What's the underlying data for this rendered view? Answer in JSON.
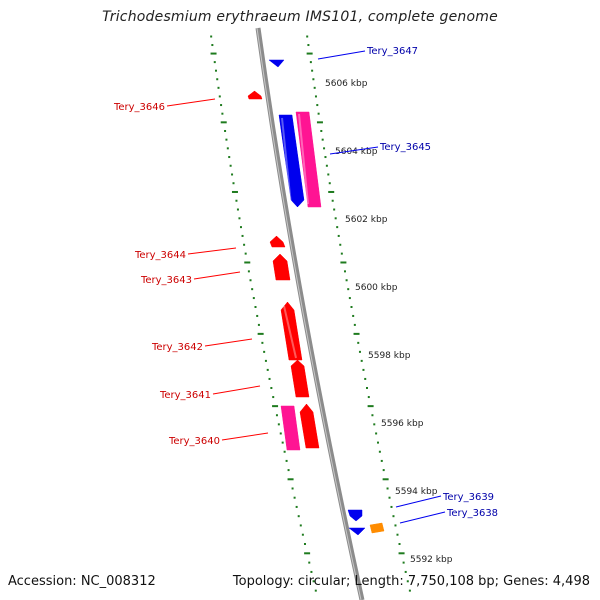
{
  "title": "Trichodesmium erythraeum IMS101, complete genome",
  "footer": {
    "accession": "Accession: NC_008312",
    "summary": "Topology: circular; Length: 7,750,108 bp; Genes: 4,498"
  },
  "colors": {
    "backbone": "#8c8c8c",
    "ruler": "#1e7b1e",
    "forward_cds": "#ff0000",
    "reverse_cds": "#0000ee",
    "forward_other": "#ff1493",
    "reverse_other": "#ff1493",
    "misc": "#ff8c00",
    "forward_label": "#cc0000",
    "reverse_label": "#0000aa"
  },
  "ruler": {
    "ticks": [
      "5606 kbp",
      "5604 kbp",
      "5602 kbp",
      "5600 kbp",
      "5598 kbp",
      "5596 kbp",
      "5594 kbp",
      "5592 kbp"
    ]
  },
  "genes": [
    {
      "label": "Tery_3647",
      "strand": "reverse",
      "type": "CDS"
    },
    {
      "label": "Tery_3646",
      "strand": "forward",
      "type": "CDS"
    },
    {
      "label": "Tery_3645",
      "strand": "reverse",
      "type": "CDS"
    },
    {
      "label": "Tery_3644",
      "strand": "forward",
      "type": "CDS"
    },
    {
      "label": "Tery_3643",
      "strand": "forward",
      "type": "CDS"
    },
    {
      "label": "Tery_3642",
      "strand": "forward",
      "type": "CDS"
    },
    {
      "label": "Tery_3641",
      "strand": "forward",
      "type": "CDS"
    },
    {
      "label": "Tery_3640",
      "strand": "forward",
      "type": "CDS"
    },
    {
      "label": "Tery_3639",
      "strand": "reverse",
      "type": "CDS"
    },
    {
      "label": "Tery_3638",
      "strand": "reverse",
      "type": "CDS"
    }
  ]
}
